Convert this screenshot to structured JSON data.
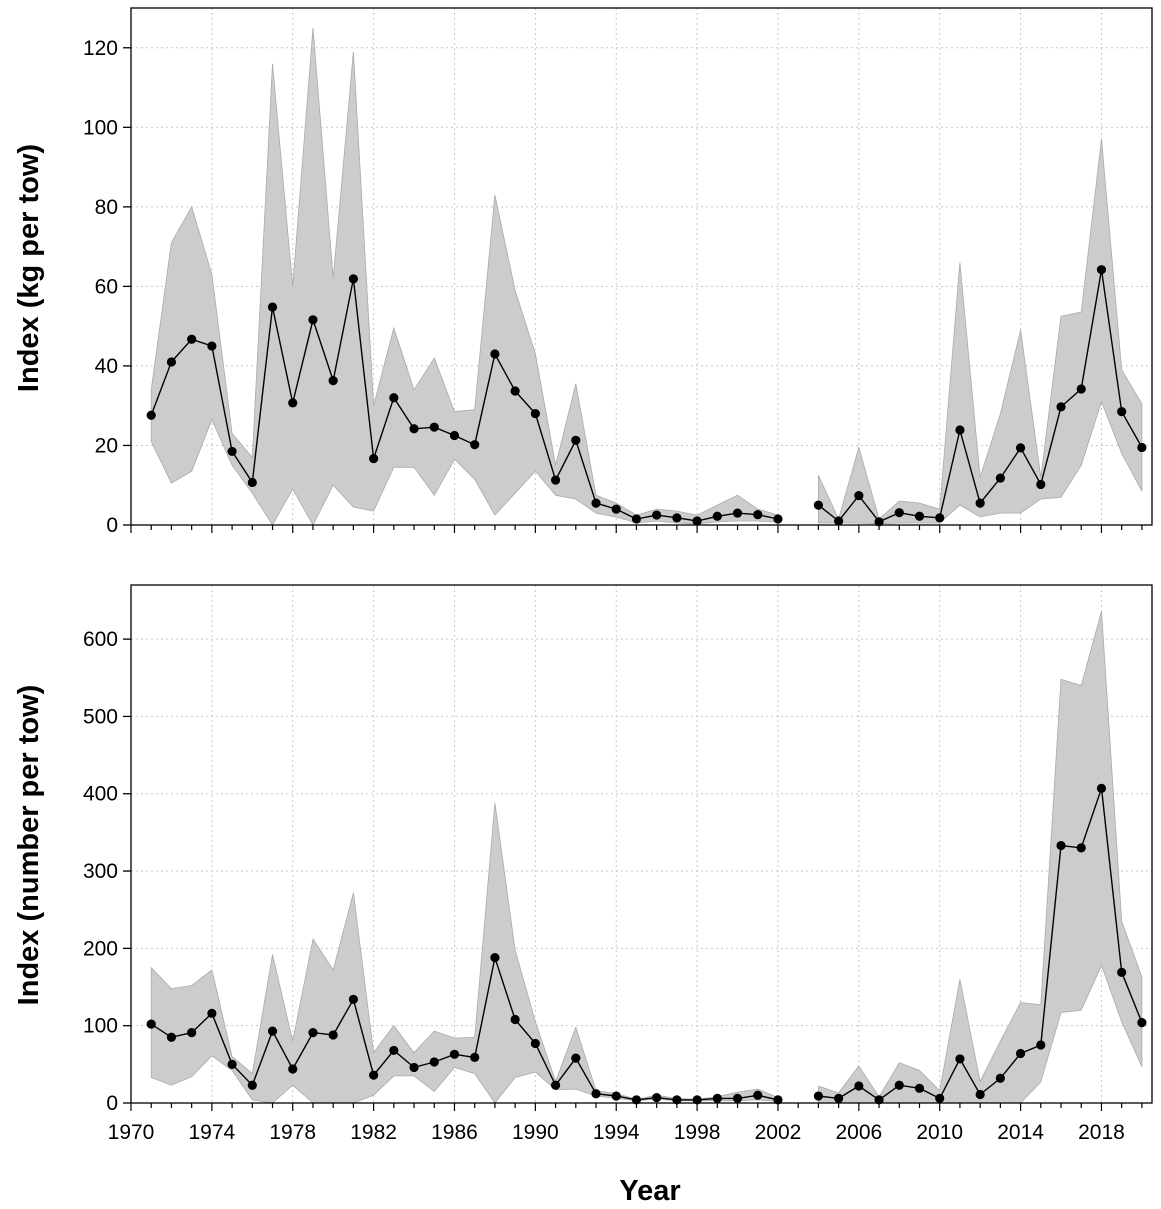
{
  "colors": {
    "band": "#cccccc",
    "band_edge": "#aaaaaa",
    "line": "#000000",
    "grid": "#c8c8c8"
  },
  "chart_data": [
    {
      "type": "line",
      "panel": "top",
      "xlabel": "",
      "ylabel": "Index (kg per tow)",
      "xlim": [
        1970,
        2020.5
      ],
      "ylim": [
        0,
        130
      ],
      "xticks": [],
      "yticks": [
        0,
        20,
        40,
        60,
        80,
        100,
        120
      ],
      "grid": true,
      "series": [
        {
          "segments": [
            {
              "x": [
                1971,
                1972,
                1973,
                1974,
                1975,
                1976,
                1977,
                1978,
                1979,
                1980,
                1981,
                1982,
                1983,
                1984,
                1985,
                1986,
                1987,
                1988,
                1989,
                1990,
                1991,
                1992,
                1993,
                1994,
                1995,
                1996,
                1997,
                1998,
                1999,
                2000,
                2001,
                2002
              ],
              "y": [
                27.6,
                41.0,
                46.7,
                45.0,
                18.5,
                10.7,
                54.8,
                30.7,
                51.6,
                36.3,
                61.9,
                16.7,
                32.0,
                24.2,
                24.6,
                22.5,
                20.2,
                43.0,
                33.7,
                28.0,
                11.3,
                21.3,
                5.5,
                4.0,
                1.5,
                2.5,
                1.8,
                1.0,
                2.2,
                3.0,
                2.6,
                1.5
              ],
              "upper": [
                34,
                71,
                80,
                63,
                23,
                17,
                116,
                60,
                125,
                62,
                119,
                30,
                49.5,
                34,
                42,
                28.5,
                29,
                83,
                59,
                43,
                15,
                35.5,
                7.5,
                5.5,
                2.5,
                4,
                3.5,
                2.5,
                5,
                7.5,
                4,
                2.5
              ],
              "lower": [
                21,
                10.5,
                13.5,
                26.5,
                15,
                8,
                0,
                9,
                0,
                10,
                4.5,
                3.5,
                14.5,
                14.5,
                7.5,
                16.5,
                11.5,
                2.5,
                8,
                13.5,
                7.5,
                6.5,
                3,
                2,
                0.5,
                1,
                0.5,
                0.3,
                0.8,
                1,
                1,
                0.7
              ]
            },
            {
              "x": [
                2004,
                2005,
                2006,
                2007,
                2008,
                2009,
                2010,
                2011,
                2012,
                2013,
                2014,
                2015,
                2016,
                2017,
                2018,
                2019,
                2020
              ],
              "y": [
                5.0,
                1.0,
                7.4,
                0.8,
                3.1,
                2.2,
                1.8,
                23.9,
                5.5,
                11.8,
                19.4,
                10.2,
                29.7,
                34.2,
                64.2,
                28.5,
                19.5
              ],
              "upper": [
                12.5,
                1.5,
                19.5,
                1.5,
                6,
                5.5,
                4,
                66,
                12,
                28,
                49,
                12,
                52.5,
                53.5,
                97,
                39,
                30.5
              ],
              "lower": [
                0.5,
                0.5,
                0.5,
                0.3,
                0.5,
                0.5,
                0.5,
                5,
                2,
                3,
                3,
                6.5,
                7,
                15,
                31,
                18,
                8.5
              ]
            }
          ]
        }
      ]
    },
    {
      "type": "line",
      "panel": "bottom",
      "xlabel": "Year",
      "ylabel": "Index (number per tow)",
      "xlim": [
        1970,
        2020.5
      ],
      "ylim": [
        0,
        670
      ],
      "xticks": [
        1970,
        1974,
        1978,
        1982,
        1986,
        1990,
        1994,
        1998,
        2002,
        2006,
        2010,
        2014,
        2018
      ],
      "xtick_labels": [
        "1970",
        "1974",
        "1978",
        "1982",
        "1986",
        "1990",
        "1994",
        "1998",
        "2002",
        "2006",
        "2010",
        "2014",
        "2018"
      ],
      "yticks": [
        0,
        100,
        200,
        300,
        400,
        500,
        600
      ],
      "grid": true,
      "series": [
        {
          "segments": [
            {
              "x": [
                1971,
                1972,
                1973,
                1974,
                1975,
                1976,
                1977,
                1978,
                1979,
                1980,
                1981,
                1982,
                1983,
                1984,
                1985,
                1986,
                1987,
                1988,
                1989,
                1990,
                1991,
                1992,
                1993,
                1994,
                1995,
                1996,
                1997,
                1998,
                1999,
                2000,
                2001,
                2002
              ],
              "y": [
                102,
                85,
                91,
                116,
                50,
                23,
                93,
                44,
                91,
                88,
                134,
                36,
                68,
                46,
                53,
                63,
                59,
                188,
                108,
                77,
                23,
                58,
                12,
                9,
                4,
                7,
                4,
                4,
                6,
                6,
                10,
                4
              ],
              "upper": [
                175,
                148,
                152,
                172,
                60,
                38,
                192,
                80,
                212,
                172,
                272,
                65,
                100,
                65,
                93,
                84,
                85,
                388,
                198,
                105,
                28,
                98,
                16,
                12,
                5,
                10,
                6,
                5,
                8,
                14,
                18,
                7
              ],
              "lower": [
                33,
                23,
                34,
                61,
                42,
                4,
                0,
                23,
                0,
                0,
                0,
                10,
                35,
                35,
                15,
                46,
                38,
                0,
                33,
                40,
                17,
                18,
                9,
                6,
                3,
                5,
                3,
                3,
                3,
                3,
                4,
                2
              ]
            },
            {
              "x": [
                2004,
                2005,
                2006,
                2007,
                2008,
                2009,
                2010,
                2011,
                2012,
                2013,
                2014,
                2015,
                2016,
                2017,
                2018,
                2019,
                2020
              ],
              "y": [
                9,
                6,
                22,
                4,
                23,
                19,
                6,
                57,
                11,
                32,
                64,
                75,
                333,
                330,
                407,
                169,
                104
              ],
              "upper": [
                22,
                13,
                48,
                8,
                52,
                42,
                16,
                160,
                28,
                80,
                130,
                127,
                548,
                540,
                636,
                235,
                163
              ],
              "lower": [
                0,
                0,
                0,
                0,
                0,
                0,
                0,
                0,
                0,
                0,
                0,
                27,
                117,
                120,
                178,
                105,
                47
              ]
            }
          ]
        }
      ]
    }
  ]
}
